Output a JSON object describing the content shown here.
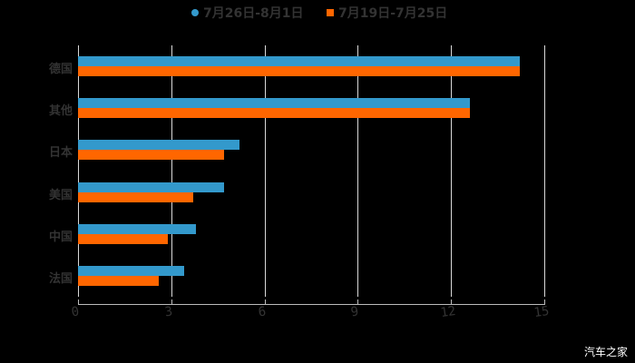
{
  "chart_data": {
    "type": "bar",
    "orientation": "horizontal",
    "title": "",
    "xlabel": "",
    "ylabel": "",
    "categories": [
      "德国",
      "其他",
      "日本",
      "美国",
      "中国",
      "法国"
    ],
    "series": [
      {
        "name": "7月26日-8月1日",
        "color": "#3399cc",
        "values": [
          14.2,
          12.6,
          5.2,
          4.7,
          3.8,
          3.4
        ]
      },
      {
        "name": "7月19日-7月25日",
        "color": "#ff6600",
        "values": [
          14.2,
          12.6,
          4.7,
          3.7,
          2.9,
          2.6
        ]
      }
    ],
    "xlim": [
      0,
      15
    ],
    "xticks": [
      "0",
      "3",
      "6",
      "9",
      "12",
      "15"
    ],
    "grid": true,
    "legend_position": "top"
  },
  "legend": {
    "items": [
      {
        "label": "7月26日-8月1日",
        "marker": "circle"
      },
      {
        "label": "7月19日-7月25日",
        "marker": "square"
      }
    ]
  },
  "watermark": "汽车之家"
}
